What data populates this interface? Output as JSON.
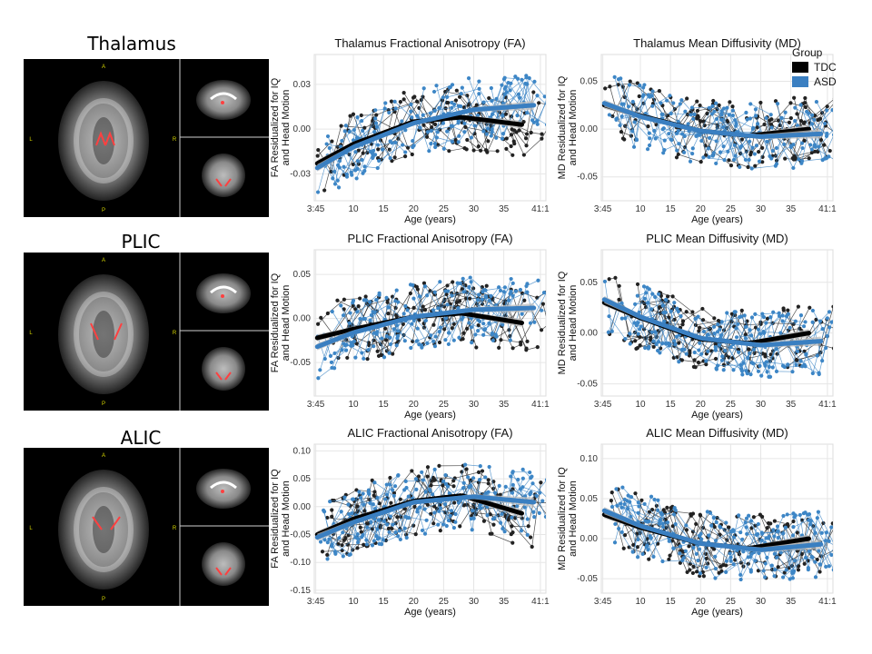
{
  "regions": [
    {
      "id": "thalamus",
      "label": "Thalamus"
    },
    {
      "id": "plic",
      "label": "PLIC"
    },
    {
      "id": "alic",
      "label": "ALIC"
    }
  ],
  "brain_orientation_labels": {
    "anterior": "A",
    "posterior": "P",
    "left": "L",
    "right": "R"
  },
  "legend": {
    "title": "Group",
    "items": [
      {
        "label": "TDC",
        "color": "#000000"
      },
      {
        "label": "ASD",
        "color": "#3a7fc1"
      }
    ]
  },
  "colors": {
    "tdc": "#000000",
    "asd": "#3a7fc1",
    "tdc_points": "#222222",
    "asd_points": "#3d86c6",
    "ci_band": "#bdbdbd",
    "grid": "#e6e6e6",
    "panel_border": "#dddddd",
    "roi": "#ff4040"
  },
  "chart_data": [
    {
      "type": "scatter",
      "title": "Thalamus Fractional Anisotropy (FA)",
      "xlabel": "Age (years)",
      "ylabel_lines": [
        "FA Residualized for IQ",
        "and Head Motion"
      ],
      "xlim": [
        3.5,
        42
      ],
      "ylim": [
        -0.048,
        0.05
      ],
      "x_ticks": [
        3.75,
        10,
        15,
        20,
        25,
        30,
        35,
        41.08
      ],
      "x_tick_labels": [
        "3:45",
        "10",
        "15",
        "20",
        "25",
        "30",
        "35",
        "41:1"
      ],
      "y_ticks": [
        -0.03,
        0,
        0.03
      ],
      "y_tick_labels": [
        "-0.03",
        "0.00",
        "0.03"
      ],
      "series": [
        {
          "name": "TDC",
          "fit_x": [
            4,
            10,
            20,
            28,
            38
          ],
          "fit_y": [
            -0.023,
            -0.01,
            0.005,
            0.008,
            0.003
          ]
        },
        {
          "name": "ASD",
          "fit_x": [
            4,
            10,
            20,
            30,
            40
          ],
          "fit_y": [
            -0.026,
            -0.012,
            0.004,
            0.013,
            0.016
          ]
        }
      ]
    },
    {
      "type": "scatter",
      "title": "Thalamus Mean Diffusivity (MD)",
      "xlabel": "Age (years)",
      "ylabel_lines": [
        "MD Residualized for IQ",
        "and Head Motion"
      ],
      "xlim": [
        3.5,
        42
      ],
      "ylim": [
        -0.075,
        0.078
      ],
      "x_ticks": [
        3.75,
        10,
        15,
        20,
        25,
        30,
        35,
        41.08
      ],
      "x_tick_labels": [
        "3:45",
        "10",
        "15",
        "20",
        "25",
        "30",
        "35",
        "41:1"
      ],
      "y_ticks": [
        -0.05,
        0,
        0.05
      ],
      "y_tick_labels": [
        "-0.05",
        "0.00",
        "0.05"
      ],
      "series": [
        {
          "name": "TDC",
          "fit_x": [
            4,
            10,
            20,
            28,
            38
          ],
          "fit_y": [
            0.025,
            0.014,
            -0.002,
            -0.007,
            0.0
          ]
        },
        {
          "name": "ASD",
          "fit_x": [
            4,
            10,
            20,
            30,
            40
          ],
          "fit_y": [
            0.027,
            0.013,
            -0.002,
            -0.008,
            -0.005
          ]
        }
      ]
    },
    {
      "type": "scatter",
      "title": "PLIC Fractional Anisotropy (FA)",
      "xlabel": "Age (years)",
      "ylabel_lines": [
        "FA Residualized for IQ",
        "and Head Motion"
      ],
      "xlim": [
        3.5,
        42
      ],
      "ylim": [
        -0.088,
        0.078
      ],
      "x_ticks": [
        3.75,
        10,
        15,
        20,
        25,
        30,
        35,
        41.08
      ],
      "x_tick_labels": [
        "3:45",
        "10",
        "15",
        "20",
        "25",
        "30",
        "35",
        "41:1"
      ],
      "y_ticks": [
        -0.05,
        0,
        0.05
      ],
      "y_tick_labels": [
        "-0.05",
        "0.00",
        "0.05"
      ],
      "series": [
        {
          "name": "TDC",
          "fit_x": [
            4,
            10,
            20,
            28,
            38
          ],
          "fit_y": [
            -0.022,
            -0.012,
            0.002,
            0.006,
            -0.005
          ]
        },
        {
          "name": "ASD",
          "fit_x": [
            4,
            10,
            20,
            30,
            40
          ],
          "fit_y": [
            -0.032,
            -0.016,
            0.002,
            0.01,
            0.012
          ]
        }
      ]
    },
    {
      "type": "scatter",
      "title": "PLIC Mean Diffusivity (MD)",
      "xlabel": "Age (years)",
      "ylabel_lines": [
        "MD Residualized for IQ",
        "and Head Motion"
      ],
      "xlim": [
        3.5,
        42
      ],
      "ylim": [
        -0.062,
        0.082
      ],
      "x_ticks": [
        3.75,
        10,
        15,
        20,
        25,
        30,
        35,
        41.08
      ],
      "x_tick_labels": [
        "3:45",
        "10",
        "15",
        "20",
        "25",
        "30",
        "35",
        "41:1"
      ],
      "y_ticks": [
        -0.05,
        0,
        0.05
      ],
      "y_tick_labels": [
        "-0.05",
        "0.00",
        "0.05"
      ],
      "series": [
        {
          "name": "TDC",
          "fit_x": [
            4,
            10,
            20,
            28,
            38
          ],
          "fit_y": [
            0.03,
            0.015,
            -0.006,
            -0.01,
            0.0
          ]
        },
        {
          "name": "ASD",
          "fit_x": [
            4,
            10,
            20,
            30,
            40
          ],
          "fit_y": [
            0.033,
            0.016,
            -0.005,
            -0.012,
            -0.008
          ]
        }
      ]
    },
    {
      "type": "scatter",
      "title": "ALIC Fractional Anisotropy (FA)",
      "xlabel": "Age (years)",
      "ylabel_lines": [
        "FA Residualized for IQ",
        "and Head Motion"
      ],
      "xlim": [
        3.5,
        42
      ],
      "ylim": [
        -0.155,
        0.112
      ],
      "x_ticks": [
        3.75,
        10,
        15,
        20,
        25,
        30,
        35,
        41.08
      ],
      "x_tick_labels": [
        "3:45",
        "10",
        "15",
        "20",
        "25",
        "30",
        "35",
        "41:1"
      ],
      "y_ticks": [
        -0.15,
        -0.1,
        -0.05,
        0,
        0.05,
        0.1
      ],
      "y_tick_labels": [
        "-0.15",
        "-0.10",
        "-0.05",
        "0.00",
        "0.05",
        "0.10"
      ],
      "series": [
        {
          "name": "TDC",
          "fit_x": [
            4,
            10,
            20,
            28,
            38
          ],
          "fit_y": [
            -0.05,
            -0.022,
            0.01,
            0.02,
            -0.012
          ]
        },
        {
          "name": "ASD",
          "fit_x": [
            4,
            10,
            20,
            30,
            40
          ],
          "fit_y": [
            -0.055,
            -0.028,
            0.008,
            0.018,
            0.008
          ]
        }
      ]
    },
    {
      "type": "scatter",
      "title": "ALIC Mean Diffusivity (MD)",
      "xlabel": "Age (years)",
      "ylabel_lines": [
        "MD Residualized for IQ",
        "and Head Motion"
      ],
      "xlim": [
        3.5,
        42
      ],
      "ylim": [
        -0.068,
        0.118
      ],
      "x_ticks": [
        3.75,
        10,
        15,
        20,
        25,
        30,
        35,
        41.08
      ],
      "x_tick_labels": [
        "3:45",
        "10",
        "15",
        "20",
        "25",
        "30",
        "35",
        "41:1"
      ],
      "y_ticks": [
        -0.05,
        0,
        0.05,
        0.1
      ],
      "y_tick_labels": [
        "-0.05",
        "0.00",
        "0.05",
        "0.10"
      ],
      "series": [
        {
          "name": "TDC",
          "fit_x": [
            4,
            10,
            20,
            28,
            38
          ],
          "fit_y": [
            0.03,
            0.014,
            -0.006,
            -0.012,
            0.0
          ]
        },
        {
          "name": "ASD",
          "fit_x": [
            4,
            10,
            20,
            30,
            40
          ],
          "fit_y": [
            0.035,
            0.016,
            -0.006,
            -0.014,
            -0.007
          ]
        }
      ]
    }
  ]
}
